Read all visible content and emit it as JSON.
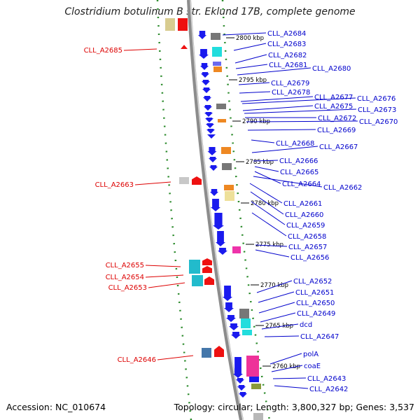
{
  "title": "Clostridium botulinum B str. Eklund 17B, complete genome",
  "footer": {
    "accession": "Accession: NC_010674",
    "topology": "Topology: circular; Length: 3,800,327 bp; Genes: 3,537"
  },
  "colors": {
    "reverse_label": "#dd0000",
    "forward_label": "#0000cc",
    "backbone": "#8c8c8c",
    "ticks": "#2a8a2a"
  },
  "position_ticks": [
    "2800 kbp",
    "2795 kbp",
    "2790 kbp",
    "2785 kbp",
    "2780 kbp",
    "2775 kbp",
    "2770 kbp",
    "2765 kbp",
    "2760 kbp"
  ],
  "reverse_genes": [
    "CLL_A2685",
    "CLL_A2663",
    "CLL_A2655",
    "CLL_A2654",
    "CLL_A2653",
    "CLL_A2646"
  ],
  "forward_genes": [
    "CLL_A2684",
    "CLL_A2683",
    "CLL_A2682",
    "CLL_A2681",
    "CLL_A2680",
    "CLL_A2679",
    "CLL_A2678",
    "CLL_A2677",
    "CLL_A2676",
    "CLL_A2675",
    "CLL_A2673",
    "CLL_A2672",
    "CLL_A2670",
    "CLL_A2669",
    "CLL_A2668",
    "CLL_A2667",
    "CLL_A2666",
    "CLL_A2665",
    "CLL_A2664",
    "CLL_A2662",
    "CLL_A2661",
    "CLL_A2660",
    "CLL_A2659",
    "CLL_A2658",
    "CLL_A2657",
    "CLL_A2656",
    "CLL_A2652",
    "CLL_A2651",
    "CLL_A2650",
    "CLL_A2649",
    "dcd",
    "CLL_A2647",
    "polA",
    "coaE",
    "CLL_A2643",
    "CLL_A2642"
  ]
}
